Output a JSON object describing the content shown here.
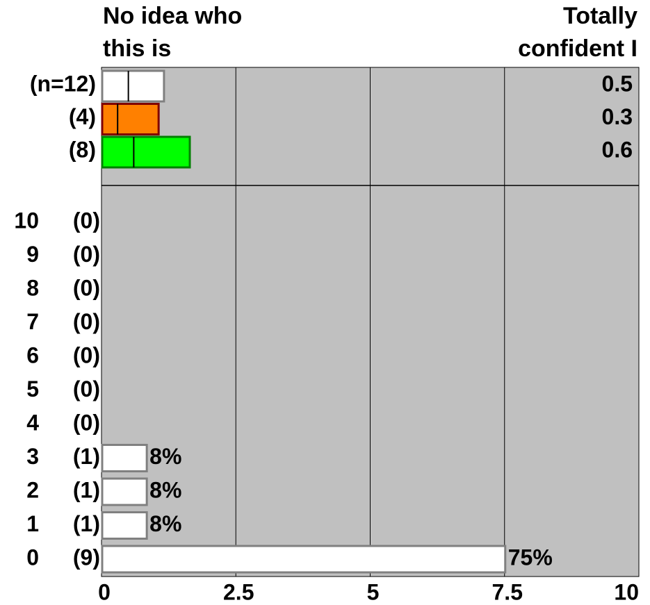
{
  "header": {
    "left": [
      "No idea who",
      "this is"
    ],
    "right": [
      "Totally",
      "confident I"
    ]
  },
  "chart_data": {
    "type": "bar",
    "orientation": "horizontal",
    "xlim": [
      0,
      10
    ],
    "xticks": [
      0,
      2.5,
      5,
      7.5,
      10
    ],
    "grid": true,
    "background": "#c0c0c0",
    "summary": [
      {
        "label": "(n=12)",
        "color": "#ffffff",
        "border": "#808080",
        "mean": 0.5,
        "end": 1.15
      },
      {
        "label": "(4)",
        "color": "#ff8000",
        "border": "#800000",
        "mean": 0.3,
        "end": 1.05
      },
      {
        "label": "(8)",
        "color": "#00ff00",
        "border": "#008000",
        "mean": 0.6,
        "end": 1.63
      }
    ],
    "categories": [
      "10",
      "9",
      "8",
      "7",
      "6",
      "5",
      "4",
      "3",
      "2",
      "1",
      "0"
    ],
    "counts": [
      "(0)",
      "(0)",
      "(0)",
      "(0)",
      "(0)",
      "(0)",
      "(0)",
      "(1)",
      "(1)",
      "(1)",
      "(9)"
    ],
    "values": [
      0,
      0,
      0,
      0,
      0,
      0,
      0,
      0.83,
      0.83,
      0.83,
      7.5
    ],
    "value_labels": [
      null,
      null,
      null,
      null,
      null,
      null,
      null,
      "8%",
      "8%",
      "8%",
      "75%"
    ],
    "color": "#ffffff",
    "border": "#808080"
  }
}
